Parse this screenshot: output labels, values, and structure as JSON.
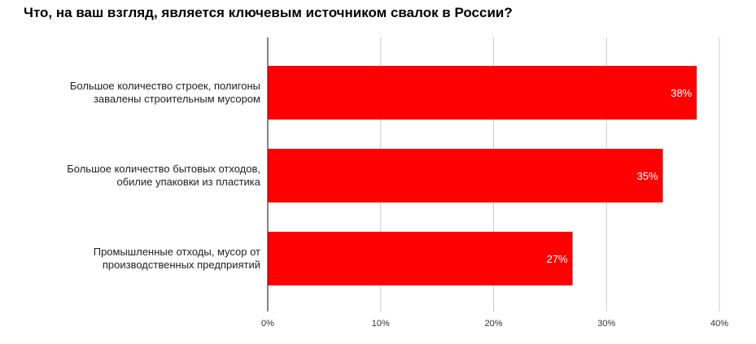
{
  "chart_data": {
    "type": "bar",
    "orientation": "horizontal",
    "title": "Что, на ваш взгляд, является ключевым источником свалок в России?",
    "categories": [
      [
        "Большое количество строек, полигоны",
        "завалены строительным мусором"
      ],
      [
        "Большое количество бытовых отходов,",
        "обилие упаковки из пластика"
      ],
      [
        "Промышленные отходы, мусор от",
        "производственных предприятий"
      ]
    ],
    "values": [
      38,
      35,
      27
    ],
    "data_labels": [
      "38%",
      "35%",
      "27%"
    ],
    "xlim": [
      0,
      40
    ],
    "x_ticks": [
      "0%",
      "10%",
      "20%",
      "30%",
      "40%"
    ],
    "grid": true,
    "legend": "none",
    "bar_color": "#ff0000",
    "label_color": "#ffffff",
    "grid_color": "#cccccc",
    "axis_color": "#333333"
  }
}
